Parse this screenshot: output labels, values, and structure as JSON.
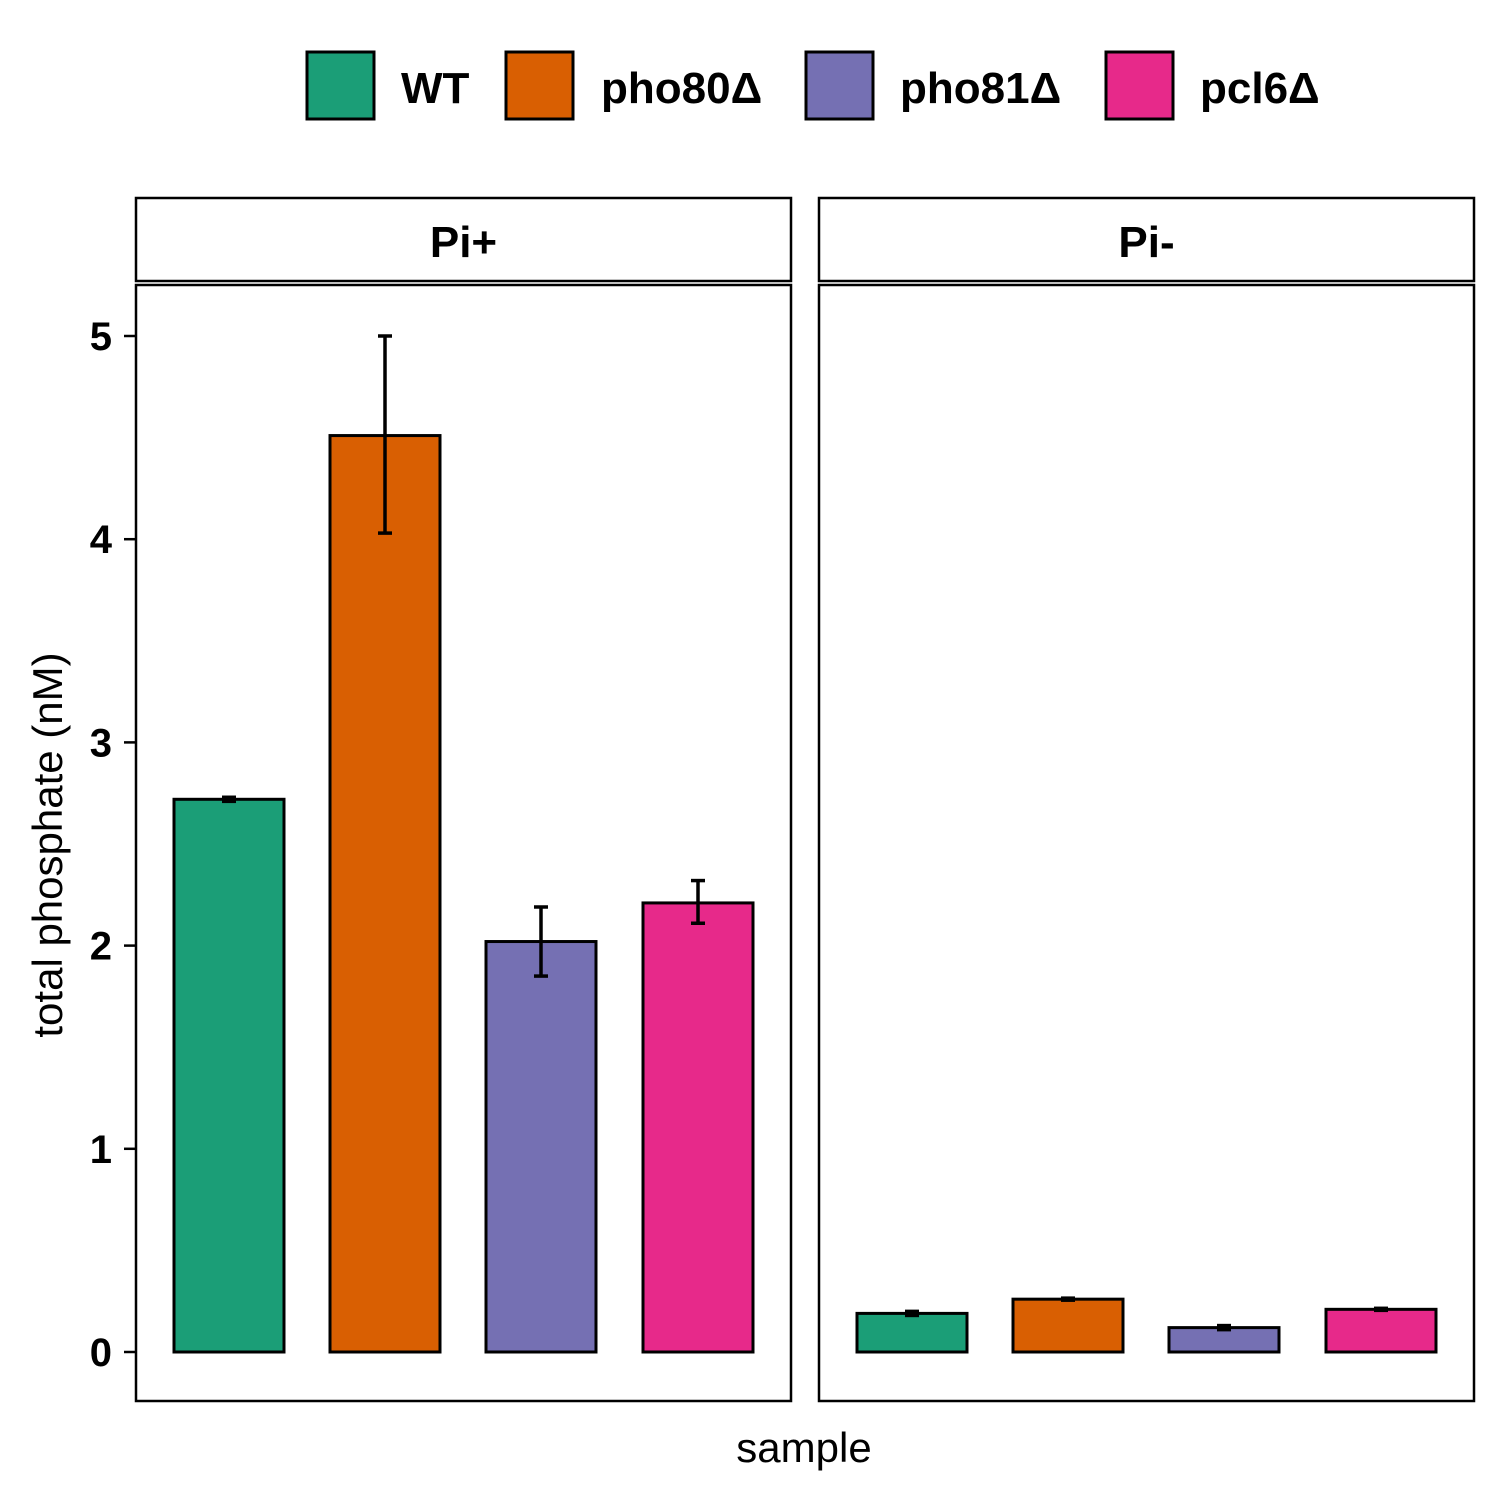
{
  "chart_data": {
    "type": "bar",
    "xlabel": "sample",
    "ylabel": "total phosphate (nM)",
    "ylim": [
      -0.25,
      5.25
    ],
    "yticks": [
      "0",
      "1",
      "2",
      "3",
      "4",
      "5"
    ],
    "ytick_values": [
      0,
      1,
      2,
      3,
      4,
      5
    ],
    "grid": false,
    "legend_position": "top",
    "legend": [
      {
        "label": "WT",
        "color": "#1b9e77"
      },
      {
        "label": "pho80Δ",
        "color": "#d95f02"
      },
      {
        "label": "pho81Δ",
        "color": "#7570b3"
      },
      {
        "label": "pcl6Δ",
        "color": "#e7298a"
      }
    ],
    "categories": [
      "WT",
      "pho80Δ",
      "pho81Δ",
      "pcl6Δ"
    ],
    "panels": [
      {
        "label": "Pi+",
        "values": [
          2.72,
          4.51,
          2.02,
          2.21
        ],
        "error_low": [
          2.71,
          4.03,
          1.85,
          2.11
        ],
        "error_high": [
          2.73,
          5.0,
          2.19,
          2.32
        ]
      },
      {
        "label": "Pi-",
        "values": [
          0.19,
          0.26,
          0.12,
          0.21
        ],
        "error_low": [
          0.18,
          0.255,
          0.11,
          0.205
        ],
        "error_high": [
          0.2,
          0.265,
          0.13,
          0.215
        ]
      }
    ]
  }
}
